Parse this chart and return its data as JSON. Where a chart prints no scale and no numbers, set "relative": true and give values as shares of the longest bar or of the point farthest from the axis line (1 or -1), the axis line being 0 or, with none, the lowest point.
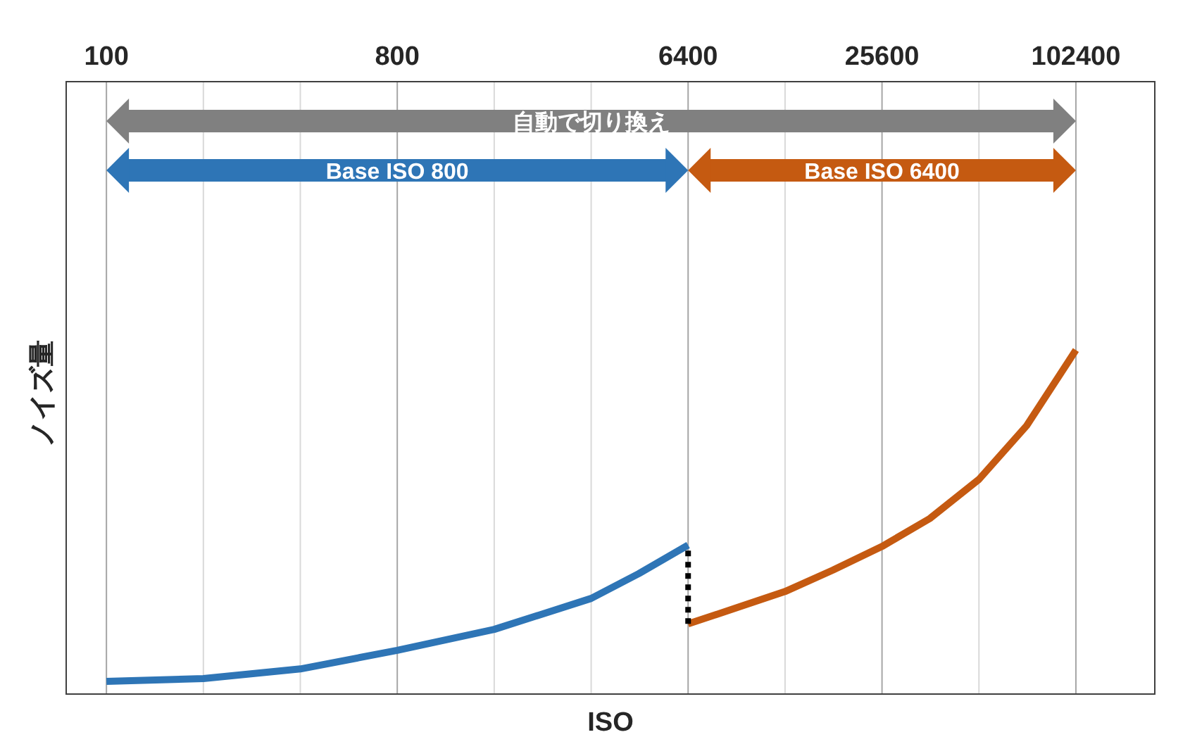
{
  "chart_data": {
    "type": "line",
    "xlabel": "ISO",
    "ylabel": "ノイズ量",
    "relative": true,
    "log": "x",
    "grid": "x",
    "xlim": [
      75,
      180000
    ],
    "xticks": [
      100,
      {
        "value": 200,
        "label": null
      },
      {
        "value": 400,
        "label": null
      },
      800,
      {
        "value": 1600,
        "label": null
      },
      {
        "value": 3200,
        "label": null
      },
      6400,
      {
        "value": 12800,
        "label": null
      },
      25600,
      {
        "value": 51200,
        "label": null
      },
      102400
    ],
    "series": [
      {
        "color": "#2e75b6",
        "x": [
          100,
          200,
          400,
          800,
          1600,
          3200,
          4500,
          6400
        ],
        "values": [
          0.037,
          0.045,
          0.073,
          0.127,
          0.188,
          0.278,
          0.35,
          0.433
        ]
      },
      {
        "color": "#c55a11",
        "x": [
          6400,
          9000,
          12800,
          18000,
          25600,
          36000,
          51200,
          72000,
          102400
        ],
        "values": [
          0.204,
          0.25,
          0.298,
          0.36,
          0.429,
          0.51,
          0.624,
          0.78,
          1.0
        ]
      },
      {
        "color": "#000000",
        "line_style": "dotted",
        "x": [
          6400,
          6400
        ],
        "values": [
          0.204,
          0.433
        ]
      }
    ],
    "annotations": [
      "自動で切り換え",
      "Base ISO 800",
      "Base ISO 6400"
    ]
  }
}
